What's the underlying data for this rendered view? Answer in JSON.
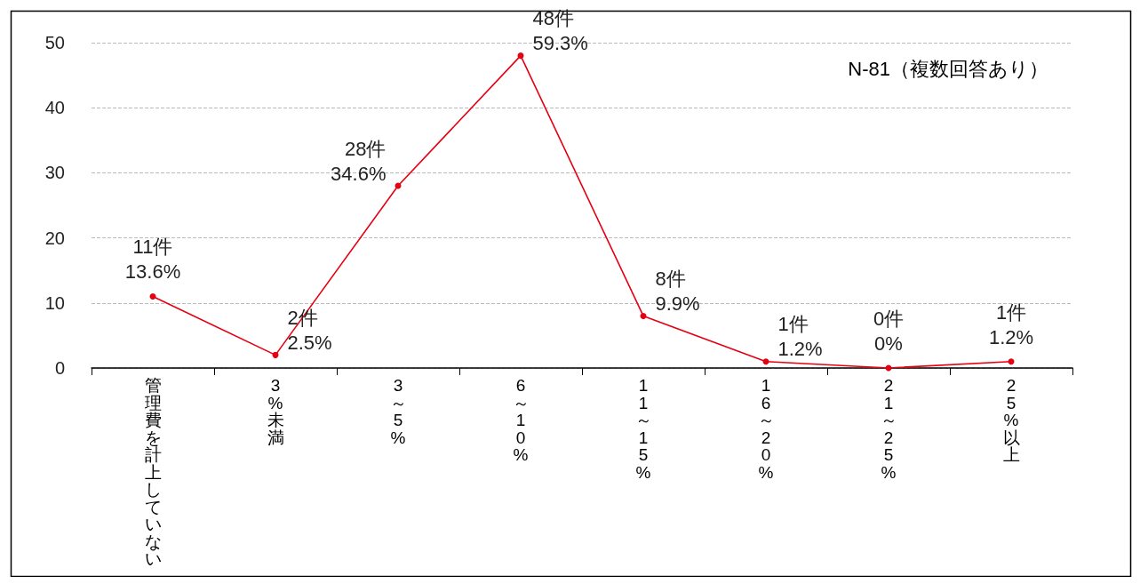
{
  "chart_data": {
    "type": "line",
    "categories": [
      "管理費を計上していない",
      "3%未満",
      "3～5%",
      "6～10%",
      "11～15%",
      "16～20%",
      "21～25%",
      "25%以上"
    ],
    "series": [
      {
        "color": "#e60012",
        "values": [
          11,
          2,
          28,
          48,
          8,
          1,
          0,
          1
        ],
        "value_labels": [
          "11件\n13.6%",
          "2件\n2.5%",
          "28件\n34.6%",
          "48件\n59.3%",
          "8件\n9.9%",
          "1件\n1.2%",
          "0件\n0%",
          "1件\n1.2%"
        ]
      }
    ],
    "ylim": [
      0,
      50
    ],
    "yticks": [
      0,
      10,
      20,
      30,
      40,
      50
    ],
    "grid": "y",
    "marker": "circle",
    "line_style": "solid",
    "annotations": [
      "N-81（複数回答あり）"
    ]
  }
}
